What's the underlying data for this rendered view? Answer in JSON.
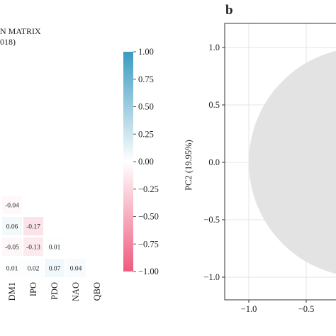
{
  "chart_data": [
    {
      "type": "heatmap",
      "title": "N MATRIX",
      "subtitle": "018)",
      "columns": [
        "DM1",
        "IPO",
        "PDO",
        "NAO",
        "QBO"
      ],
      "cells": [
        {
          "row": 0,
          "col": 0,
          "value": -0.04,
          "label": "-0.04"
        },
        {
          "row": 1,
          "col": 0,
          "value": 0.06,
          "label": "0.06"
        },
        {
          "row": 1,
          "col": 1,
          "value": -0.17,
          "label": "-0.17"
        },
        {
          "row": 2,
          "col": 0,
          "value": -0.05,
          "label": "-0.05"
        },
        {
          "row": 2,
          "col": 1,
          "value": -0.13,
          "label": "-0.13"
        },
        {
          "row": 2,
          "col": 2,
          "value": 0.01,
          "label": "0.01"
        },
        {
          "row": 3,
          "col": 0,
          "value": 0.01,
          "label": "0.01"
        },
        {
          "row": 3,
          "col": 1,
          "value": 0.02,
          "label": "0.02"
        },
        {
          "row": 3,
          "col": 2,
          "value": 0.07,
          "label": "0.07"
        },
        {
          "row": 3,
          "col": 3,
          "value": 0.04,
          "label": "0.04"
        }
      ],
      "colorbar": {
        "range": [
          -1.0,
          1.0
        ],
        "ticks": [
          "1.00",
          "0.75",
          "0.50",
          "0.25",
          "0.00",
          "−0.25",
          "−0.50",
          "−0.75",
          "−1.00"
        ],
        "colors": {
          "positive": "#3a9bc1",
          "neutral": "#ffffff",
          "negative": "#ef5a7e"
        }
      }
    },
    {
      "type": "scatter",
      "panel_label": "b",
      "ylabel": "PC2 (19.95%)",
      "xlabel": "",
      "xlim": [
        -1.2,
        0.2
      ],
      "ylim": [
        -1.2,
        1.2
      ],
      "xticks": [
        "−1.0",
        "−0.5"
      ],
      "yticks": [
        "1.0",
        "0.5",
        "0.0",
        "−0.5",
        "−1.0"
      ],
      "grid": true,
      "unit_circle": {
        "center": [
          0,
          0
        ],
        "radius": 1.0,
        "fill": "#e3e3e3"
      }
    }
  ]
}
